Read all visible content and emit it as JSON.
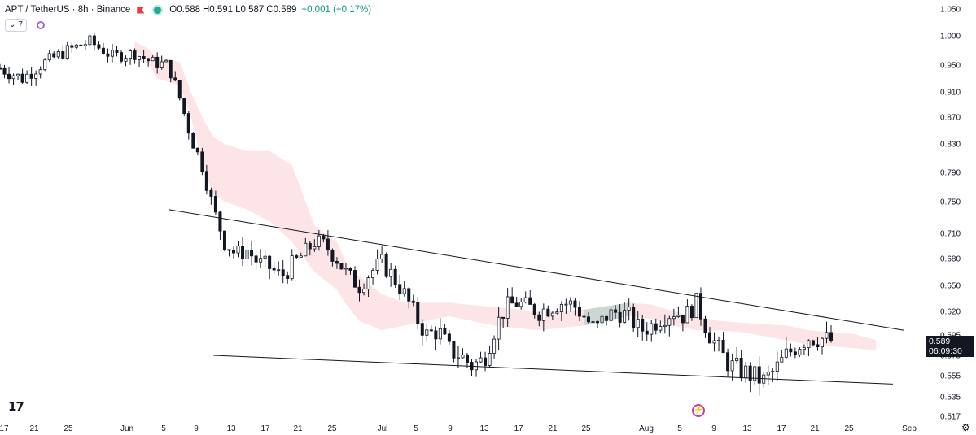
{
  "header": {
    "symbol": "APT / TetherUS · 8h · Binance",
    "open": "O0.588",
    "high": "H0.591",
    "low": "L0.587",
    "close": "C0.589",
    "change": "+0.001 (+0.17%)"
  },
  "indicator": {
    "count": "7",
    "chevron_icon": "chevron-down-icon"
  },
  "price_tag": {
    "price": "0.589",
    "countdown": "06:09:30"
  },
  "colors": {
    "up": "#089981",
    "down": "#f23645",
    "candle": "#131722",
    "cloud_bear": "#f23645",
    "cloud_bull": "#089981"
  },
  "chart_data": {
    "type": "candlestick",
    "title": "APT / TetherUS · 8h · Binance",
    "y_ticks": [
      "1.050",
      "1.000",
      "0.950",
      "0.910",
      "0.870",
      "0.830",
      "0.790",
      "0.750",
      "0.710",
      "0.680",
      "0.650",
      "0.620",
      "0.595",
      "0.575",
      "0.555",
      "0.535",
      "0.517"
    ],
    "y_range": [
      0.517,
      1.05
    ],
    "x_ticks": [
      "17",
      "21",
      "25",
      "Jun",
      "5",
      "9",
      "13",
      "17",
      "21",
      "25",
      "Jul",
      "5",
      "9",
      "13",
      "17",
      "21",
      "25",
      "Aug",
      "5",
      "9",
      "13",
      "17",
      "21",
      "25",
      "Sep"
    ],
    "current_price": 0.589,
    "path": [
      [
        0,
        0.945
      ],
      [
        2,
        0.93
      ],
      [
        4,
        0.955
      ],
      [
        6,
        0.975
      ],
      [
        8,
        0.99
      ],
      [
        10,
        0.965
      ],
      [
        12,
        0.97
      ],
      [
        13.5,
        0.955
      ],
      [
        15,
        0.95
      ],
      [
        16,
        0.9
      ],
      [
        17,
        0.84
      ],
      [
        18,
        0.8
      ],
      [
        19,
        0.74
      ],
      [
        20,
        0.7
      ],
      [
        21,
        0.685
      ],
      [
        22,
        0.69
      ],
      [
        23,
        0.675
      ],
      [
        24,
        0.67
      ],
      [
        25,
        0.66
      ],
      [
        27,
        0.685
      ],
      [
        28,
        0.7
      ],
      [
        29,
        0.695
      ],
      [
        30,
        0.68
      ],
      [
        31,
        0.66
      ],
      [
        32,
        0.65
      ],
      [
        33,
        0.665
      ],
      [
        34,
        0.675
      ],
      [
        35,
        0.66
      ],
      [
        36,
        0.64
      ],
      [
        37,
        0.615
      ],
      [
        38,
        0.595
      ],
      [
        39,
        0.6
      ],
      [
        40,
        0.58
      ],
      [
        41,
        0.575
      ],
      [
        42,
        0.565
      ],
      [
        43,
        0.57
      ],
      [
        44,
        0.6
      ],
      [
        45,
        0.625
      ],
      [
        46,
        0.63
      ],
      [
        47,
        0.625
      ],
      [
        48,
        0.62
      ],
      [
        49,
        0.625
      ],
      [
        50,
        0.63
      ],
      [
        51,
        0.628
      ],
      [
        52,
        0.615
      ],
      [
        53,
        0.6
      ],
      [
        54,
        0.615
      ],
      [
        55,
        0.62
      ],
      [
        56,
        0.615
      ],
      [
        57,
        0.6
      ],
      [
        58,
        0.605
      ],
      [
        59,
        0.615
      ],
      [
        60,
        0.62
      ],
      [
        61,
        0.615
      ],
      [
        62,
        0.63
      ],
      [
        63,
        0.6
      ],
      [
        64,
        0.58
      ],
      [
        65,
        0.565
      ],
      [
        66,
        0.56
      ],
      [
        67,
        0.555
      ],
      [
        68,
        0.55
      ],
      [
        69,
        0.56
      ],
      [
        70,
        0.575
      ],
      [
        71,
        0.585
      ],
      [
        72,
        0.593
      ],
      [
        73,
        0.592
      ],
      [
        74,
        0.589
      ]
    ],
    "x_span": [
      0,
      84
    ],
    "cloud": {
      "top": [
        [
          12,
          0.99
        ],
        [
          13,
          0.98
        ],
        [
          14,
          0.965
        ],
        [
          16,
          0.955
        ],
        [
          17,
          0.91
        ],
        [
          18,
          0.87
        ],
        [
          19,
          0.84
        ],
        [
          20,
          0.83
        ],
        [
          22,
          0.82
        ],
        [
          24,
          0.82
        ],
        [
          26,
          0.8
        ],
        [
          28,
          0.72
        ],
        [
          30,
          0.7
        ],
        [
          31,
          0.67
        ],
        [
          32,
          0.66
        ],
        [
          34,
          0.64
        ],
        [
          36,
          0.63
        ],
        [
          40,
          0.63
        ],
        [
          44,
          0.625
        ],
        [
          48,
          0.62
        ],
        [
          52,
          0.622
        ],
        [
          56,
          0.63
        ],
        [
          58,
          0.628
        ],
        [
          60,
          0.62
        ],
        [
          62,
          0.615
        ],
        [
          64,
          0.61
        ],
        [
          66,
          0.608
        ],
        [
          70,
          0.605
        ],
        [
          72,
          0.6
        ],
        [
          74,
          0.598
        ],
        [
          76,
          0.596
        ],
        [
          78,
          0.59
        ]
      ],
      "bottom": [
        [
          12,
          0.975
        ],
        [
          13,
          0.96
        ],
        [
          14,
          0.93
        ],
        [
          16,
          0.92
        ],
        [
          17,
          0.87
        ],
        [
          18,
          0.8
        ],
        [
          19,
          0.76
        ],
        [
          20,
          0.75
        ],
        [
          22,
          0.74
        ],
        [
          24,
          0.725
        ],
        [
          26,
          0.7
        ],
        [
          28,
          0.665
        ],
        [
          30,
          0.645
        ],
        [
          31,
          0.625
        ],
        [
          32,
          0.61
        ],
        [
          34,
          0.6
        ],
        [
          36,
          0.605
        ],
        [
          40,
          0.615
        ],
        [
          44,
          0.605
        ],
        [
          48,
          0.6
        ],
        [
          52,
          0.605
        ],
        [
          56,
          0.615
        ],
        [
          58,
          0.612
        ],
        [
          60,
          0.605
        ],
        [
          62,
          0.6
        ],
        [
          64,
          0.6
        ],
        [
          66,
          0.598
        ],
        [
          70,
          0.59
        ],
        [
          72,
          0.585
        ],
        [
          74,
          0.584
        ],
        [
          76,
          0.582
        ],
        [
          78,
          0.58
        ]
      ],
      "bull_span": [
        50,
        56
      ]
    },
    "trendlines": [
      {
        "from": [
          15,
          0.74
        ],
        "to": [
          80.5,
          0.6
        ]
      },
      {
        "from": [
          19,
          0.575
        ],
        "to": [
          79.5,
          0.547
        ]
      }
    ]
  }
}
